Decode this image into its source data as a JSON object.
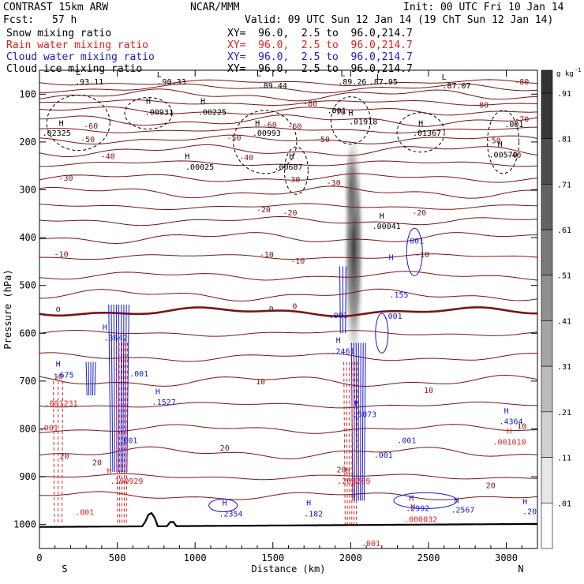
{
  "header": {
    "title": "CONTRAST 15km ARW",
    "center": "NCAR/MMM",
    "init": "Init: 00 UTC Fri 10 Jan 14",
    "fcst_label": "Fcst:",
    "fcst_value": "57 h",
    "valid": "Valid: 09 UTC Sun 12 Jan 14 (19 ChT Sun 12 Jan 14)",
    "fields": [
      {
        "name": "Snow mixing ratio",
        "xy": "XY=  96.0,  2.5 to  96.0,214.7",
        "color": "#000000"
      },
      {
        "name": "Rain water mixing ratio",
        "xy": "XY=  96.0,  2.5 to  96.0,214.7",
        "color": "#e02020"
      },
      {
        "name": "Cloud water mixing ratio",
        "xy": "XY=  96.0,  2.5 to  96.0,214.7",
        "color": "#1a1ad0"
      },
      {
        "name": "Cloud ice mixing ratio",
        "xy": "XY=  96.0,  2.5 to  96.0,214.7",
        "color": "#000000"
      }
    ]
  },
  "chart_data": {
    "type": "cross-section",
    "xlabel": "Distance (km)",
    "ylabel": "Pressure (hPa)",
    "xlim": [
      0,
      3200
    ],
    "ylim": [
      1050,
      50
    ],
    "x_ticks": [
      "0",
      "500",
      "1000",
      "1500",
      "2000",
      "2500",
      "3000"
    ],
    "x_tick_values": [
      0,
      500,
      1000,
      1500,
      2000,
      2500,
      3000
    ],
    "y_ticks": [
      "100",
      "200",
      "300",
      "400",
      "500",
      "600",
      "700",
      "800",
      "900",
      "1000"
    ],
    "y_tick_values": [
      100,
      200,
      300,
      400,
      500,
      600,
      700,
      800,
      900,
      1000
    ],
    "x_end_labels": {
      "left": "S",
      "right": "N"
    },
    "colorbar": {
      "unit": "g kg",
      "unit_exp": "-1",
      "labels": [
        ".91",
        ".81",
        ".71",
        ".61",
        ".51",
        ".41",
        ".31",
        ".21",
        ".11",
        ".01"
      ],
      "values": [
        0.91,
        0.81,
        0.71,
        0.61,
        0.51,
        0.41,
        0.31,
        0.21,
        0.11,
        0.01
      ]
    },
    "temperature_labels": [
      {
        "x": 3100,
        "p": 80,
        "text": "-80"
      },
      {
        "x": 2840,
        "p": 128,
        "text": "-80"
      },
      {
        "x": 1740,
        "p": 125,
        "text": "-80"
      },
      {
        "x": 1920,
        "p": 143,
        "text": "-70"
      },
      {
        "x": 3100,
        "p": 158,
        "text": "-70"
      },
      {
        "x": 330,
        "p": 172,
        "text": "-60"
      },
      {
        "x": 1480,
        "p": 170,
        "text": "-60"
      },
      {
        "x": 1640,
        "p": 173,
        "text": "-60"
      },
      {
        "x": 310,
        "p": 200,
        "text": "-50"
      },
      {
        "x": 1250,
        "p": 197,
        "text": "-50"
      },
      {
        "x": 1820,
        "p": 200,
        "text": "-50"
      },
      {
        "x": 2920,
        "p": 203,
        "text": "-50"
      },
      {
        "x": 440,
        "p": 236,
        "text": "-40"
      },
      {
        "x": 1330,
        "p": 238,
        "text": "-40"
      },
      {
        "x": 3050,
        "p": 233,
        "text": "-40"
      },
      {
        "x": 170,
        "p": 281,
        "text": "-30"
      },
      {
        "x": 1630,
        "p": 284,
        "text": "-30"
      },
      {
        "x": 1890,
        "p": 291,
        "text": "-30"
      },
      {
        "x": 1440,
        "p": 347,
        "text": "-20"
      },
      {
        "x": 1610,
        "p": 354,
        "text": "-20"
      },
      {
        "x": 2440,
        "p": 354,
        "text": "-20"
      },
      {
        "x": 140,
        "p": 440,
        "text": "-10"
      },
      {
        "x": 1460,
        "p": 441,
        "text": "-10"
      },
      {
        "x": 1660,
        "p": 454,
        "text": "-10"
      },
      {
        "x": 2460,
        "p": 441,
        "text": "-10"
      },
      {
        "x": 120,
        "p": 556,
        "text": "0"
      },
      {
        "x": 1490,
        "p": 555,
        "text": "0"
      },
      {
        "x": 1640,
        "p": 549,
        "text": "0"
      },
      {
        "x": 120,
        "p": 696,
        "text": "10"
      },
      {
        "x": 1420,
        "p": 707,
        "text": "10"
      },
      {
        "x": 2500,
        "p": 725,
        "text": "10"
      },
      {
        "x": 160,
        "p": 863,
        "text": "20"
      },
      {
        "x": 370,
        "p": 876,
        "text": "20"
      },
      {
        "x": 1190,
        "p": 845,
        "text": "20"
      },
      {
        "x": 1940,
        "p": 891,
        "text": "20"
      },
      {
        "x": 2900,
        "p": 924,
        "text": "20"
      },
      {
        "x": 3100,
        "p": 800,
        "text": "10"
      }
    ],
    "snow_labels": [
      {
        "x": 250,
        "p": 60,
        "text": "L"
      },
      {
        "x": 320,
        "p": 80,
        "text": ".93.11"
      },
      {
        "x": 770,
        "p": 65,
        "text": "L"
      },
      {
        "x": 850,
        "p": 80,
        "text": ".90.33"
      },
      {
        "x": 1410,
        "p": 62,
        "text": "L"
      },
      {
        "x": 1500,
        "p": 88,
        "text": ".89.44"
      },
      {
        "x": 1950,
        "p": 62,
        "text": "L"
      },
      {
        "x": 2010,
        "p": 80,
        "text": ".89.26"
      },
      {
        "x": 2180,
        "p": 70,
        "text": "L"
      },
      {
        "x": 2210,
        "p": 80,
        "text": ".87.95"
      },
      {
        "x": 2600,
        "p": 70,
        "text": "L"
      },
      {
        "x": 2680,
        "p": 88,
        "text": ".87.07"
      },
      {
        "x": 700,
        "p": 120,
        "text": "H"
      },
      {
        "x": 770,
        "p": 143,
        "text": ".00931"
      },
      {
        "x": 1050,
        "p": 120,
        "text": "H"
      },
      {
        "x": 1110,
        "p": 143,
        "text": ".00225"
      },
      {
        "x": 2000,
        "p": 145,
        "text": "H"
      },
      {
        "x": 2080,
        "p": 163,
        "text": ".01918"
      },
      {
        "x": 1910,
        "p": 140,
        "text": ".001"
      },
      {
        "x": 140,
        "p": 166,
        "text": "H"
      },
      {
        "x": 110,
        "p": 187,
        "text": ".02325"
      },
      {
        "x": 1400,
        "p": 166,
        "text": "H"
      },
      {
        "x": 1460,
        "p": 187,
        "text": ".00993"
      },
      {
        "x": 2450,
        "p": 166,
        "text": "H"
      },
      {
        "x": 2490,
        "p": 187,
        "text": ".01367"
      },
      {
        "x": 3050,
        "p": 169,
        "text": ".001"
      },
      {
        "x": 2960,
        "p": 210,
        "text": "H"
      },
      {
        "x": 2980,
        "p": 232,
        "text": ".00570"
      },
      {
        "x": 950,
        "p": 236,
        "text": "H"
      },
      {
        "x": 1030,
        "p": 258,
        "text": ".00025"
      },
      {
        "x": 1620,
        "p": 236,
        "text": "H"
      },
      {
        "x": 1600,
        "p": 258,
        "text": ".00687"
      },
      {
        "x": 2200,
        "p": 360,
        "text": "H"
      },
      {
        "x": 2230,
        "p": 382,
        "text": ".00041"
      }
    ],
    "cloud_water_labels": [
      {
        "x": 2410,
        "p": 412,
        "text": ".001"
      },
      {
        "x": 2260,
        "p": 447,
        "text": "H"
      },
      {
        "x": 2310,
        "p": 525,
        "text": ".155"
      },
      {
        "x": 1920,
        "p": 568,
        "text": ".001"
      },
      {
        "x": 2270,
        "p": 570,
        "text": ".001"
      },
      {
        "x": 420,
        "p": 593,
        "text": "H"
      },
      {
        "x": 490,
        "p": 615,
        "text": ".3642"
      },
      {
        "x": 1920,
        "p": 620,
        "text": "H"
      },
      {
        "x": 1950,
        "p": 643,
        "text": ".2461"
      },
      {
        "x": 120,
        "p": 670,
        "text": "H"
      },
      {
        "x": 160,
        "p": 693,
        "text": ".675"
      },
      {
        "x": 640,
        "p": 690,
        "text": ".001"
      },
      {
        "x": 760,
        "p": 727,
        "text": "H"
      },
      {
        "x": 800,
        "p": 750,
        "text": ".1527"
      },
      {
        "x": 2040,
        "p": 752,
        "text": "H"
      },
      {
        "x": 2090,
        "p": 775,
        "text": ".5073"
      },
      {
        "x": 570,
        "p": 830,
        "text": ".001"
      },
      {
        "x": 2360,
        "p": 830,
        "text": ".001"
      },
      {
        "x": 2210,
        "p": 860,
        "text": ".001"
      },
      {
        "x": 3000,
        "p": 768,
        "text": "H"
      },
      {
        "x": 3030,
        "p": 790,
        "text": ".4364"
      },
      {
        "x": 1190,
        "p": 960,
        "text": "H"
      },
      {
        "x": 1230,
        "p": 983,
        "text": ".2354"
      },
      {
        "x": 1730,
        "p": 960,
        "text": "H"
      },
      {
        "x": 1760,
        "p": 983,
        "text": ".182"
      },
      {
        "x": 2390,
        "p": 950,
        "text": "H"
      },
      {
        "x": 2430,
        "p": 972,
        "text": ".2992"
      },
      {
        "x": 2680,
        "p": 955,
        "text": "H"
      },
      {
        "x": 2720,
        "p": 975,
        "text": ".2567"
      },
      {
        "x": 3120,
        "p": 958,
        "text": "H"
      },
      {
        "x": 3150,
        "p": 978,
        "text": ".20"
      }
    ],
    "rain_labels": [
      {
        "x": 140,
        "p": 752,
        "text": ".001231"
      },
      {
        "x": 60,
        "p": 803,
        "text": ".001"
      },
      {
        "x": 3020,
        "p": 810,
        "text": "H"
      },
      {
        "x": 3020,
        "p": 833,
        "text": ".001010"
      },
      {
        "x": 450,
        "p": 893,
        "text": "H"
      },
      {
        "x": 560,
        "p": 915,
        "text": ".190929"
      },
      {
        "x": 1980,
        "p": 893,
        "text": "H"
      },
      {
        "x": 2020,
        "p": 915,
        "text": ".208269"
      },
      {
        "x": 290,
        "p": 980,
        "text": ".001"
      },
      {
        "x": 2400,
        "p": 968,
        "text": "H"
      },
      {
        "x": 2450,
        "p": 995,
        "text": ".000032"
      },
      {
        "x": 2130,
        "p": 1045,
        "text": ".001"
      }
    ]
  }
}
